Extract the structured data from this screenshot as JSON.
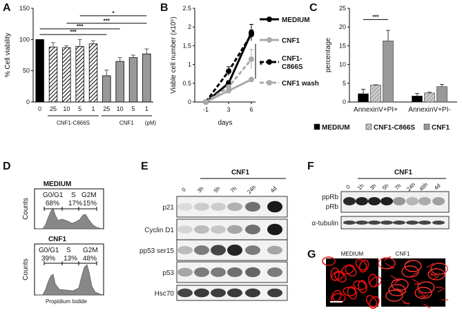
{
  "panels": {
    "a": "A",
    "b": "B",
    "c": "C",
    "d": "D",
    "e": "E",
    "f": "F",
    "g": "G"
  },
  "chart_data": [
    {
      "id": "A",
      "type": "bar",
      "ylabel": "% Cell viability",
      "ylim": [
        0,
        150
      ],
      "yticks": [
        "0",
        "50",
        "100",
        "150"
      ],
      "categories": [
        "0",
        "25",
        "10",
        "5",
        "1",
        "25",
        "10",
        "5",
        "1"
      ],
      "values": [
        100,
        88,
        87,
        89,
        93,
        42,
        65,
        71,
        77
      ],
      "errors": [
        0,
        7,
        3,
        11,
        5,
        9,
        6,
        4,
        8
      ],
      "styles": [
        "black",
        "hatch",
        "hatch",
        "hatch",
        "hatch",
        "gray",
        "gray",
        "gray",
        "gray"
      ],
      "groups": [
        {
          "label": "CNF1-C866S",
          "from": 1,
          "to": 4
        },
        {
          "label": "CNF1",
          "from": 5,
          "to": 8
        }
      ],
      "unit": "(pM)",
      "significance": [
        {
          "from": 0,
          "to": 5,
          "label": "***",
          "y": 108
        },
        {
          "from": 0,
          "to": 6,
          "label": "***",
          "y": 117
        },
        {
          "from": 2,
          "to": 8,
          "label": "***",
          "y": 126
        },
        {
          "from": 3,
          "to": 8,
          "label": "*",
          "y": 138
        }
      ]
    },
    {
      "id": "B",
      "type": "line",
      "ylabel": "Viable cell number (x10⁶)",
      "xlabel": "days",
      "x": [
        "-1",
        "3",
        "6"
      ],
      "ylim": [
        0,
        2.5
      ],
      "yticks": [
        "0",
        "0.5",
        "1",
        "1.5",
        "2",
        "2.5"
      ],
      "series": [
        {
          "name": "MEDIUM",
          "values": [
            0,
            0.5,
            1.85
          ],
          "errors": [
            0,
            0.07,
            0.22
          ],
          "color": "#000000",
          "dash": "",
          "width": 3
        },
        {
          "name": "CNF1",
          "values": [
            0,
            0.3,
            0.6
          ],
          "errors": [
            0,
            0.04,
            0.05
          ],
          "color": "#aaaaaa",
          "dash": "",
          "width": 3
        },
        {
          "name": "CNF1-\nC866S",
          "values": [
            0,
            0.82,
            1.8
          ],
          "errors": [
            0,
            0.12,
            0.12
          ],
          "color": "#000000",
          "dash": "6,3",
          "width": 3
        },
        {
          "name": "CNF1 wash",
          "values": [
            0,
            0.4,
            1.14
          ],
          "errors": [
            0,
            0.05,
            0.26
          ],
          "color": "#aaaaaa",
          "dash": "6,3",
          "width": 3
        }
      ],
      "annotation": "*"
    },
    {
      "id": "C",
      "type": "bar",
      "ylabel": "percentage",
      "ylim": [
        0,
        25
      ],
      "yticks": [
        "0",
        "5",
        "10",
        "15",
        "20",
        "25"
      ],
      "categories": [
        "AnnexinV+PI+",
        "AnnexinV+PI-"
      ],
      "series": [
        {
          "name": "MEDIUM",
          "values": [
            2.2,
            1.6
          ],
          "errors": [
            1.2,
            0.7
          ],
          "color": "#000000"
        },
        {
          "name": "CNF1-C866S",
          "values": [
            4.5,
            2.4
          ],
          "errors": [
            0.1,
            0.2
          ],
          "color": "#bbbbbb",
          "hatch": true
        },
        {
          "name": "CNF1",
          "values": [
            16.3,
            4.1
          ],
          "errors": [
            2.8,
            0.6
          ],
          "color": "#999999"
        }
      ],
      "significance": {
        "label": "***",
        "y": 22
      }
    }
  ],
  "flow": {
    "axis_label": "Propidium Iodide",
    "ylabel": "Counts",
    "medium": {
      "title": "MEDIUM",
      "g0g1": "G0/G1",
      "g0g1_pct": "68%",
      "s": "S",
      "s_pct": "17%",
      "g2m": "G2M",
      "g2m_pct": "15%"
    },
    "cnf1": {
      "title": "CNF1",
      "g0g1": "G0/G1",
      "g0g1_pct": "39%",
      "s": "S",
      "s_pct": "13%",
      "g2m": "G2M",
      "g2m_pct": "48%"
    }
  },
  "blotE": {
    "header": "CNF1",
    "lanes": [
      "0",
      "3h",
      "5h",
      "7h",
      "24h",
      "4d"
    ],
    "rows": [
      "p21",
      "Cyclin D1",
      "pp53 ser15",
      "p53",
      "Hsc70"
    ]
  },
  "blotF": {
    "header": "CNF1",
    "lanes": [
      "0",
      "1h",
      "3h",
      "5h",
      "7h",
      "24h",
      "48h",
      "4d"
    ],
    "rows": [
      "ppRb",
      "pRb",
      "α-tubulin"
    ]
  },
  "imagesG": {
    "left": "MEDIUM",
    "right": "CNF1"
  }
}
